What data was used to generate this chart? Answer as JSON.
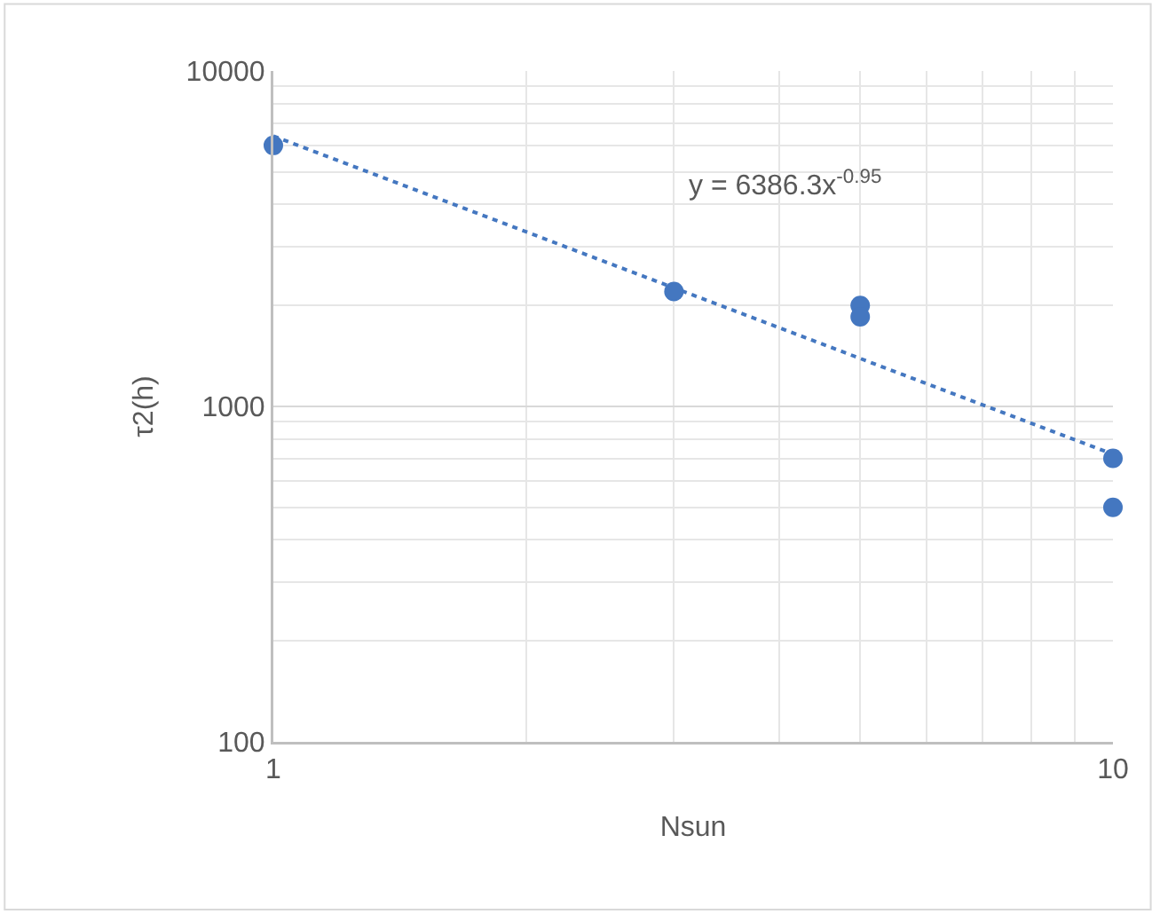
{
  "chart_data": {
    "type": "scatter",
    "xlabel": "Nsun",
    "ylabel": "τ2(h)",
    "log": "xy",
    "grid": true,
    "marker": "circle",
    "xlim": [
      1,
      10
    ],
    "xticks": [
      1,
      10
    ],
    "ylim": [
      100,
      10000
    ],
    "yticks": [
      100,
      1000,
      10000
    ],
    "annotations": [
      "y = 6386.3x$^{-0.95}$"
    ],
    "series": [
      {
        "type": "scatter",
        "color": "#4477c0",
        "x": [
          1,
          3,
          5,
          5,
          10,
          10
        ],
        "values": [
          6000,
          2200,
          2000,
          1850,
          700,
          500
        ]
      },
      {
        "type": "line",
        "color": "#4477c0",
        "line_style": "dotted",
        "marker": "none",
        "x": [
          1,
          10
        ],
        "values": [
          6400,
          720
        ]
      }
    ]
  }
}
